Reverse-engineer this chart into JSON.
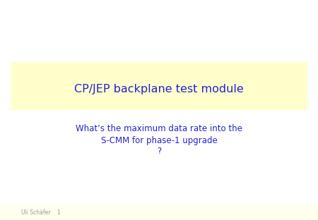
{
  "bg_color": "#ffffff",
  "footer_bg_color": "#ffffee",
  "title_box_bg_color": "#ffffcc",
  "title_text": "CP/JEP backplane test module",
  "title_color": "#2222cc",
  "body_line1": "What’s the maximum data rate into the",
  "body_line2": "S-CMM for phase-1 upgrade",
  "body_line3": "?",
  "body_color": "#2222cc",
  "footer_text": "Uli Schäfer    1",
  "footer_color": "#999999",
  "title_fontsize": 11.5,
  "body_fontsize": 8.5,
  "footer_fontsize": 5.5
}
